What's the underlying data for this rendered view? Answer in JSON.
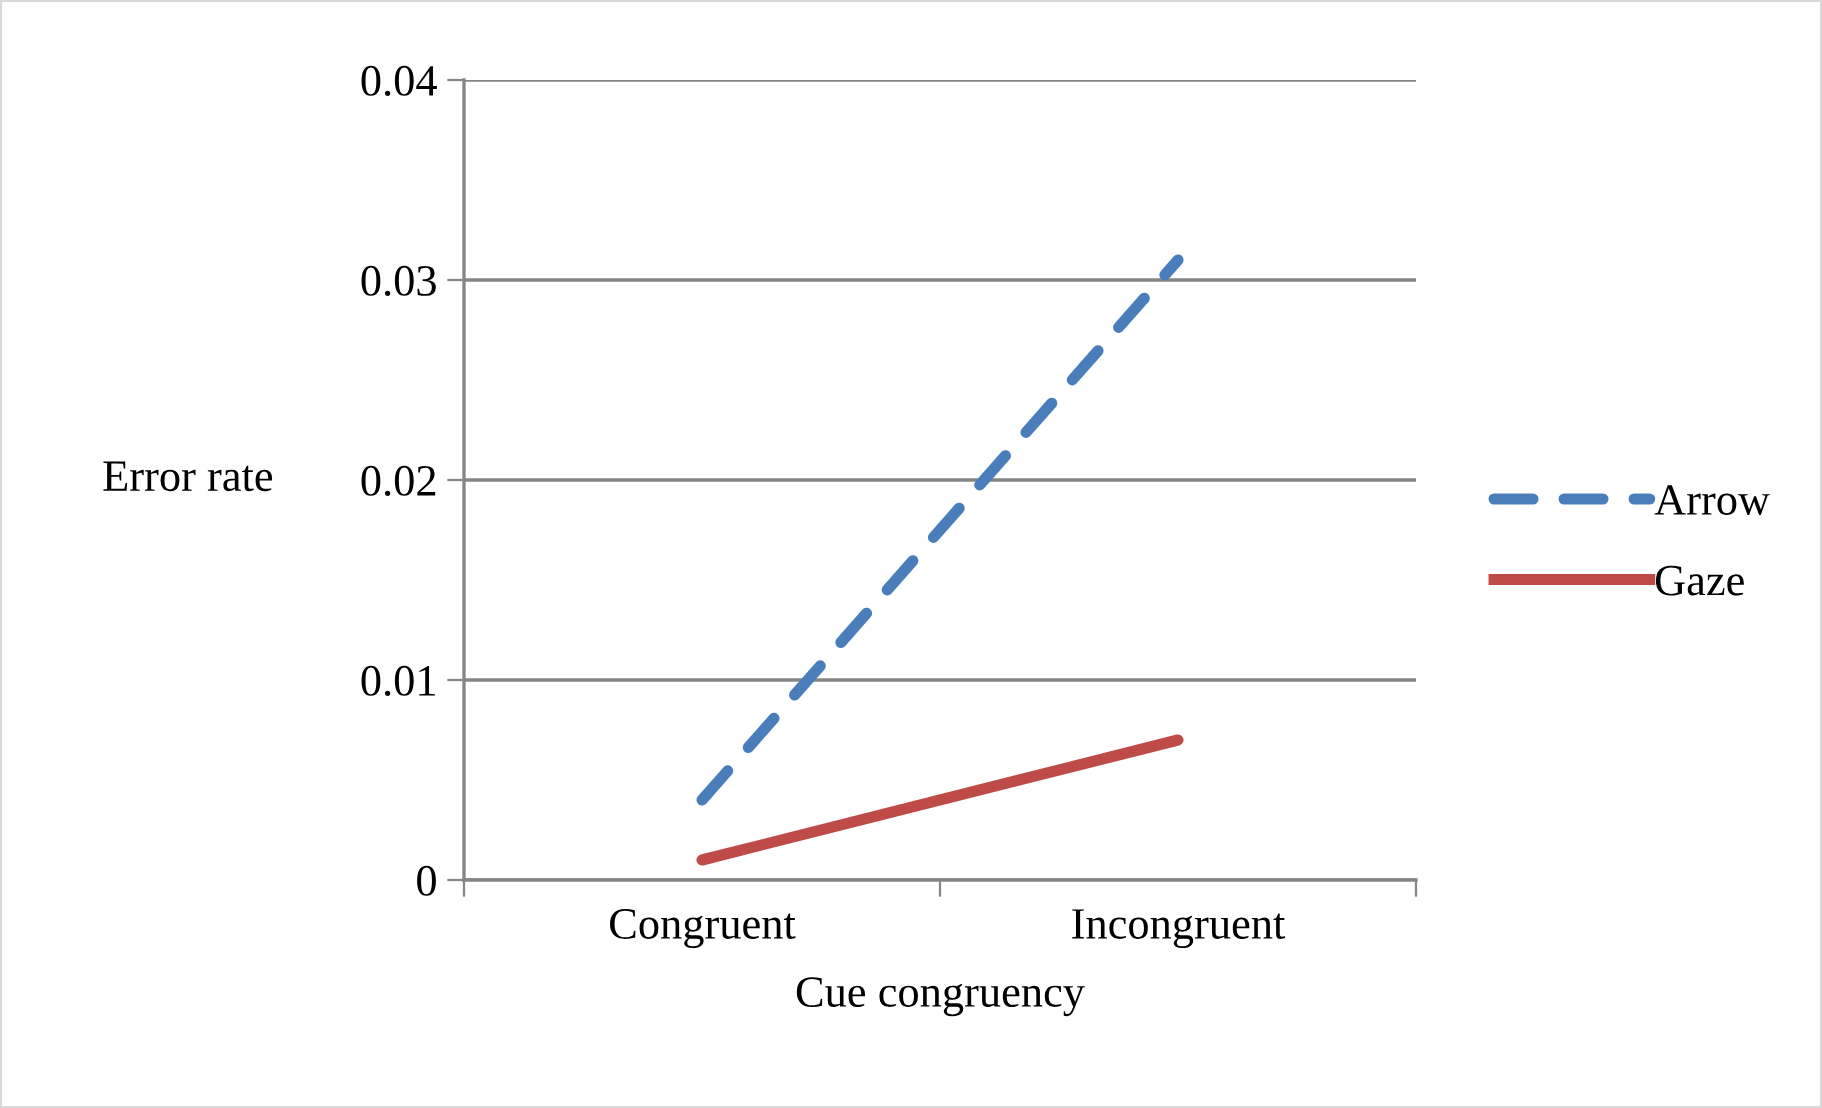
{
  "chart_data": {
    "type": "line",
    "xlabel": "Cue congruency",
    "ylabel": "Error rate",
    "categories": [
      "Congruent",
      "Incongruent"
    ],
    "series": [
      {
        "name": "Arrow",
        "color": "#4a7ebb",
        "values": [
          0.004,
          0.031
        ],
        "line_style": "dashed"
      },
      {
        "name": "Gaze",
        "color": "#be4b48",
        "values": [
          0.001,
          0.007
        ],
        "line_style": "solid"
      }
    ],
    "ylim": [
      0,
      0.04
    ],
    "yticks": [
      0,
      0.01,
      0.02,
      0.03,
      0.04
    ],
    "grid": "y",
    "legend": "right",
    "marker": "none"
  }
}
